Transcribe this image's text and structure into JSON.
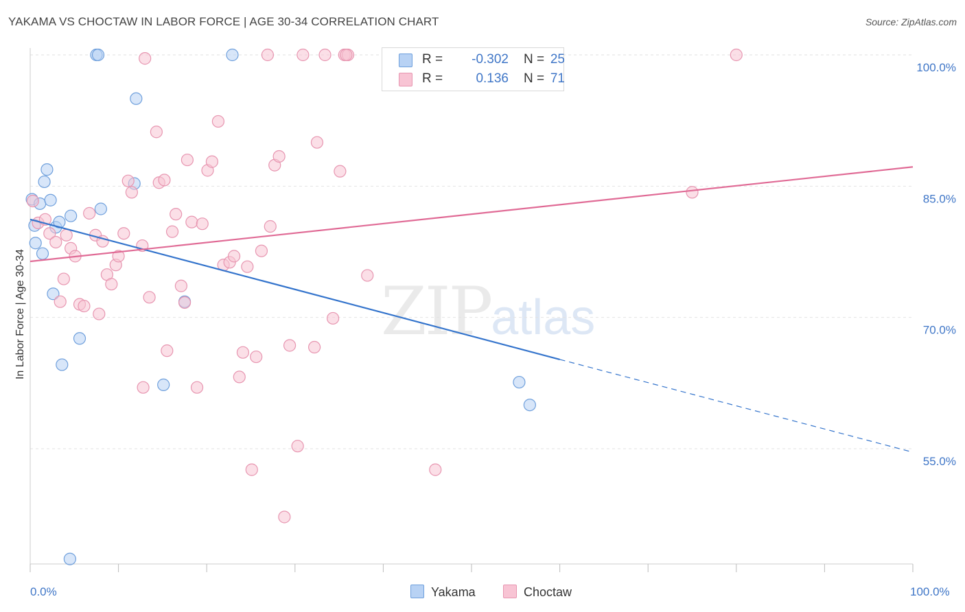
{
  "title": "YAKAMA VS CHOCTAW IN LABOR FORCE | AGE 30-34 CORRELATION CHART",
  "source": "Source: ZipAtlas.com",
  "watermark": {
    "zip": "ZIP",
    "atlas": "atlas"
  },
  "colors": {
    "yakama_fill": "#b8d2f4",
    "yakama_stroke": "#6e9fdc",
    "yakama_line": "#3474cc",
    "choctaw_fill": "#f8c4d4",
    "choctaw_stroke": "#e795b0",
    "choctaw_line": "#e06a95",
    "axis_label": "#3f76c7"
  },
  "legend": {
    "yakama": {
      "r_label": "R =",
      "r_value": "-0.302",
      "n_label": "N =",
      "n_value": "25"
    },
    "choctaw": {
      "r_label": "R =",
      "r_value": "0.136",
      "n_label": "N =",
      "n_value": "71"
    }
  },
  "bottom_legend": {
    "yakama": "Yakama",
    "choctaw": "Choctaw"
  },
  "chart_data": {
    "type": "scatter",
    "title": "YAKAMA VS CHOCTAW IN LABOR FORCE | AGE 30-34 CORRELATION CHART",
    "xlabel": "",
    "ylabel": "In Labor Force | Age 30-34",
    "xlim": [
      0,
      100
    ],
    "ylim": [
      40,
      103
    ],
    "x_tick_labels": [
      "0.0%",
      "100.0%"
    ],
    "y_ticks": [
      {
        "value": 55,
        "label": "55.0%"
      },
      {
        "value": 70,
        "label": "70.0%"
      },
      {
        "value": 85,
        "label": "85.0%"
      },
      {
        "value": 100,
        "label": "100.0%"
      }
    ],
    "grid": true,
    "legend_position": "top-center",
    "series": [
      {
        "name": "Yakama",
        "points": [
          [
            0.2,
            83.5
          ],
          [
            0.5,
            80.5
          ],
          [
            0.6,
            78.5
          ],
          [
            1.1,
            83.0
          ],
          [
            1.4,
            77.3
          ],
          [
            1.6,
            85.5
          ],
          [
            1.9,
            86.9
          ],
          [
            2.3,
            83.4
          ],
          [
            2.6,
            72.7
          ],
          [
            2.9,
            80.3
          ],
          [
            3.3,
            80.9
          ],
          [
            3.6,
            64.6
          ],
          [
            4.5,
            42.4
          ],
          [
            4.6,
            81.6
          ],
          [
            5.6,
            67.6
          ],
          [
            7.5,
            100.0
          ],
          [
            7.7,
            100.0
          ],
          [
            8.0,
            82.4
          ],
          [
            12.0,
            95.0
          ],
          [
            11.8,
            85.3
          ],
          [
            15.1,
            62.3
          ],
          [
            17.5,
            71.8
          ],
          [
            22.9,
            100.0
          ],
          [
            55.4,
            62.6
          ],
          [
            56.6,
            60.0
          ]
        ],
        "trend": {
          "x0": 0,
          "y0": 81.2,
          "x1": 60,
          "y1": 65.2,
          "dash_x1": 100,
          "dash_y1": 54.6
        }
      },
      {
        "name": "Choctaw",
        "points": [
          [
            0.3,
            83.3
          ],
          [
            0.9,
            80.8
          ],
          [
            1.7,
            81.2
          ],
          [
            2.2,
            79.6
          ],
          [
            2.9,
            78.6
          ],
          [
            3.4,
            71.8
          ],
          [
            3.8,
            74.4
          ],
          [
            4.1,
            79.4
          ],
          [
            4.6,
            77.9
          ],
          [
            5.1,
            77.0
          ],
          [
            5.6,
            71.5
          ],
          [
            6.1,
            71.3
          ],
          [
            6.7,
            81.9
          ],
          [
            7.4,
            79.4
          ],
          [
            7.8,
            70.4
          ],
          [
            8.2,
            78.7
          ],
          [
            8.7,
            74.9
          ],
          [
            9.2,
            73.8
          ],
          [
            9.7,
            76.0
          ],
          [
            10.0,
            77.0
          ],
          [
            10.6,
            79.6
          ],
          [
            11.1,
            85.6
          ],
          [
            11.5,
            84.3
          ],
          [
            12.7,
            78.2
          ],
          [
            13.0,
            99.6
          ],
          [
            13.5,
            72.3
          ],
          [
            14.3,
            91.2
          ],
          [
            14.6,
            85.4
          ],
          [
            15.2,
            85.7
          ],
          [
            15.5,
            66.2
          ],
          [
            16.1,
            79.8
          ],
          [
            16.5,
            81.8
          ],
          [
            17.1,
            73.6
          ],
          [
            17.5,
            71.7
          ],
          [
            17.8,
            88.0
          ],
          [
            18.3,
            80.9
          ],
          [
            18.9,
            62.0
          ],
          [
            19.5,
            80.7
          ],
          [
            20.1,
            86.8
          ],
          [
            20.6,
            87.8
          ],
          [
            21.3,
            92.4
          ],
          [
            21.9,
            76.0
          ],
          [
            22.6,
            76.3
          ],
          [
            23.1,
            77.0
          ],
          [
            23.7,
            63.2
          ],
          [
            24.1,
            66.0
          ],
          [
            24.6,
            75.8
          ],
          [
            25.1,
            52.6
          ],
          [
            25.6,
            65.5
          ],
          [
            26.2,
            77.6
          ],
          [
            26.9,
            100.0
          ],
          [
            27.2,
            80.4
          ],
          [
            27.7,
            87.4
          ],
          [
            28.2,
            88.4
          ],
          [
            28.8,
            47.2
          ],
          [
            29.4,
            66.8
          ],
          [
            30.3,
            55.3
          ],
          [
            30.9,
            100.0
          ],
          [
            32.2,
            66.6
          ],
          [
            32.5,
            90.0
          ],
          [
            33.4,
            100.0
          ],
          [
            34.3,
            69.9
          ],
          [
            35.1,
            86.7
          ],
          [
            35.6,
            100.0
          ],
          [
            36.0,
            100.0
          ],
          [
            35.8,
            100.0
          ],
          [
            38.2,
            74.8
          ],
          [
            45.9,
            52.6
          ],
          [
            12.8,
            62.0
          ],
          [
            75.0,
            84.3
          ],
          [
            80.0,
            100.0
          ]
        ],
        "trend": {
          "x0": 0,
          "y0": 76.4,
          "x1": 100,
          "y1": 87.2
        }
      }
    ]
  }
}
